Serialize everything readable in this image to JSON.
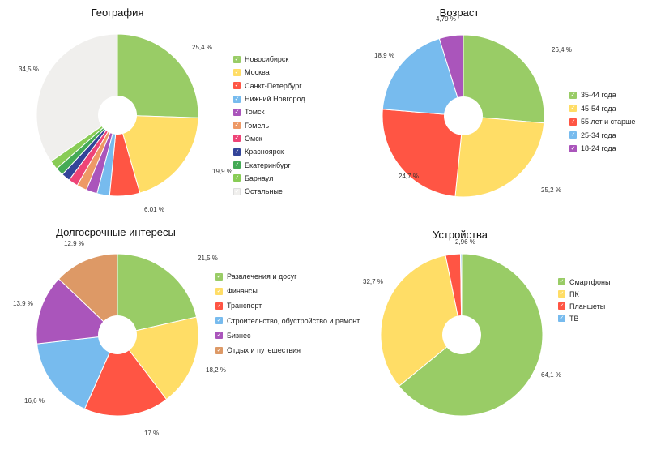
{
  "chart_data": [
    {
      "type": "pie",
      "title": "География",
      "categories": [
        "Новосибирск",
        "Москва",
        "Санкт-Петербург",
        "Нижний Новгород",
        "Томск",
        "Гомель",
        "Омск",
        "Красноярск",
        "Екатеринбург",
        "Барнаул",
        "Остальные"
      ],
      "values": [
        25.4,
        19.9,
        6.01,
        2.5,
        2.2,
        2.0,
        1.9,
        1.7,
        1.6,
        1.8,
        34.5
      ],
      "labels": [
        "25,4 %",
        "19,9 %",
        "6,01 %",
        "",
        "",
        "",
        "",
        "",
        "",
        "",
        "34,5 %"
      ],
      "colors": [
        "#99cc66",
        "#ffdd66",
        "#ff5544",
        "#77bbee",
        "#aa55bb",
        "#ee9966",
        "#ee4477",
        "#334499",
        "#44aa55",
        "#88cc55",
        "#f0efed"
      ]
    },
    {
      "type": "pie",
      "title": "Возраст",
      "categories": [
        "35-44 года",
        "45-54 года",
        "55 лет и старше",
        "25-34 года",
        "18-24 года"
      ],
      "values": [
        26.4,
        25.2,
        24.7,
        18.9,
        4.79
      ],
      "labels": [
        "26,4 %",
        "25,2 %",
        "24,7 %",
        "18,9 %",
        "4,79 %"
      ],
      "colors": [
        "#99cc66",
        "#ffdd66",
        "#ff5544",
        "#77bbee",
        "#aa55bb"
      ]
    },
    {
      "type": "pie",
      "title": "Долгосрочные интересы",
      "categories": [
        "Развлечения и досуг",
        "Финансы",
        "Транспорт",
        "Строительство, обустройство и ремонт",
        "Бизнес",
        "Отдых и путешествия"
      ],
      "values": [
        21.5,
        18.2,
        17,
        16.6,
        13.9,
        12.9
      ],
      "labels": [
        "21,5 %",
        "18,2 %",
        "17 %",
        "16,6 %",
        "13,9 %",
        "12,9 %"
      ],
      "colors": [
        "#99cc66",
        "#ffdd66",
        "#ff5544",
        "#77bbee",
        "#aa55bb",
        "#dd9966"
      ]
    },
    {
      "type": "pie",
      "title": "Устройства",
      "categories": [
        "Смартфоны",
        "ПК",
        "Планшеты",
        "ТВ"
      ],
      "values": [
        64.1,
        32.7,
        2.96,
        0.24
      ],
      "labels": [
        "64,1 %",
        "32,7 %",
        "2,96 %",
        ""
      ],
      "colors": [
        "#99cc66",
        "#ffdd66",
        "#ff5544",
        "#77bbee"
      ]
    }
  ]
}
